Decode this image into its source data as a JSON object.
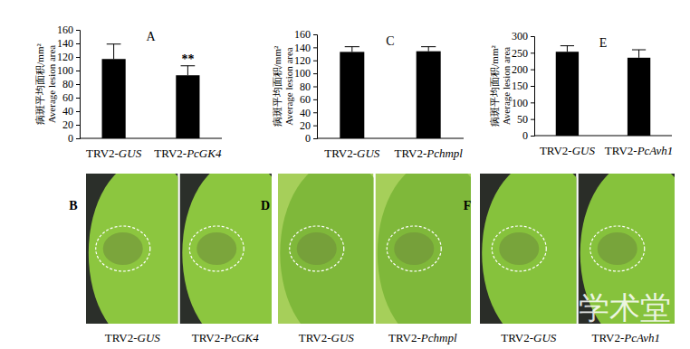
{
  "chart_data": [
    {
      "type": "bar",
      "title": "A",
      "ylabel": [
        "病斑平均面积/mm²",
        "Average lesion area"
      ],
      "categories": [
        "TRV2-GUS",
        "TRV2-PcGK4"
      ],
      "values": [
        117,
        93
      ],
      "errors": [
        22,
        14
      ],
      "annotations": [
        {
          "text": "**",
          "category": "TRV2-PcGK4"
        }
      ],
      "color": "#000000",
      "ylim": [
        0,
        160
      ],
      "yticks": [
        0,
        20,
        40,
        60,
        80,
        100,
        120,
        140,
        160
      ],
      "grid": false
    },
    {
      "type": "bar",
      "title": "C",
      "ylabel": [
        "病斑平均面积/mm²",
        "Average lesion area"
      ],
      "categories": [
        "TRV2-GUS",
        "TRV2-Pchmpl"
      ],
      "values": [
        133,
        134
      ],
      "errors": [
        8,
        7
      ],
      "color": "#000000",
      "ylim": [
        0,
        160
      ],
      "yticks": [
        0,
        20,
        40,
        60,
        80,
        100,
        120,
        140,
        160
      ],
      "grid": false
    },
    {
      "type": "bar",
      "title": "E",
      "ylabel": [
        "病斑平均面积/mm²",
        "Average lesion area"
      ],
      "categories": [
        "TRV2-GUS",
        "TRV2-PcAvh1"
      ],
      "values": [
        253,
        235
      ],
      "errors": [
        18,
        24
      ],
      "color": "#000000",
      "ylim": [
        0,
        300
      ],
      "yticks": [
        0,
        50,
        100,
        150,
        200,
        250,
        300
      ],
      "grid": false
    }
  ],
  "photo_panels": [
    {
      "letter": "B",
      "labels": [
        "TRV2-GUS",
        "TRV2-PcGK4"
      ]
    },
    {
      "letter": "D",
      "labels": [
        "TRV2-GUS",
        "TRV2-Pchmpl"
      ]
    },
    {
      "letter": "F",
      "labels": [
        "TRV2-GUS",
        "TRV2-PcAvh1"
      ]
    }
  ],
  "watermark": "学术堂"
}
